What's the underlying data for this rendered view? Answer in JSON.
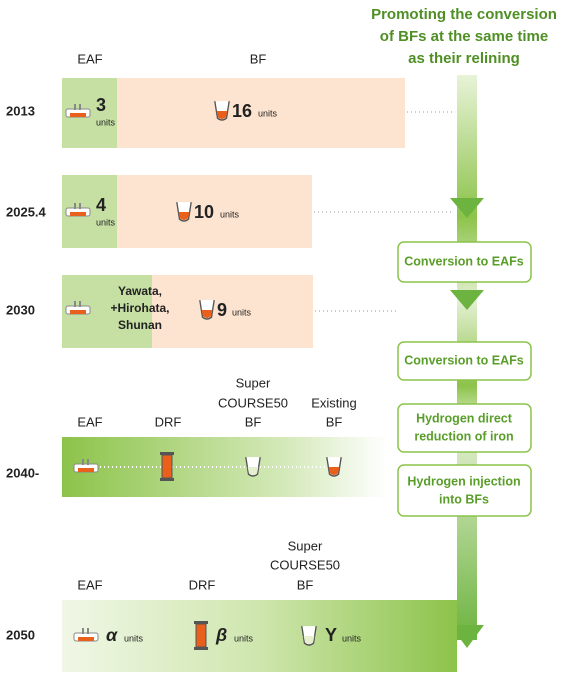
{
  "header": {
    "title_lines": [
      "Promoting the conversion",
      "of BFs at the same time",
      "as their relining"
    ]
  },
  "columns": {
    "eaf": "EAF",
    "bf": "BF"
  },
  "rows": [
    {
      "year": "2013",
      "eaf_count": 3,
      "eaf_units": "units",
      "bf_count": 16,
      "bf_units": "units"
    },
    {
      "year": "2025.4",
      "eaf_count": 4,
      "eaf_units": "units",
      "bf_count": 10,
      "bf_units": "units"
    },
    {
      "year": "2030",
      "eaf_lines": [
        "Yawata,",
        "+Hirohata,",
        "Shunan"
      ],
      "bf_count": 9,
      "bf_units": "units"
    }
  ],
  "steps": [
    [
      "Conversion to EAFs"
    ],
    [
      "Conversion to EAFs"
    ],
    [
      "Hydrogen direct",
      "reduction of iron"
    ],
    [
      "Hydrogen injection",
      "into BFs"
    ]
  ],
  "row_2040": {
    "year": "2040-",
    "labels": {
      "eaf": [
        "EAF"
      ],
      "drf": [
        "DRF"
      ],
      "sc50": [
        "Super",
        "COURSE50",
        "BF"
      ],
      "existing": [
        "Existing",
        "BF"
      ]
    }
  },
  "row_2050": {
    "year": "2050",
    "labels": {
      "eaf": [
        "EAF"
      ],
      "drf": [
        "DRF"
      ],
      "sc50": [
        "Super",
        "COURSE50",
        "BF"
      ]
    },
    "eaf_symbol": "α",
    "drf_symbol": "β",
    "sc50_symbol": "Y",
    "units": "units"
  }
}
